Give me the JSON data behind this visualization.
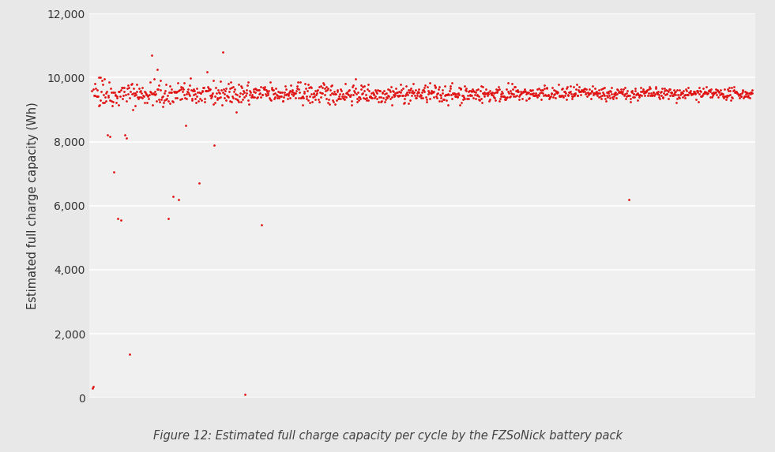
{
  "title": "",
  "ylabel": "Estimated full charge capacity (Wh)",
  "xlabel": "",
  "caption": "Figure 12: Estimated full charge capacity per cycle by the FZSoNick battery pack",
  "dot_color": "#e01010",
  "background_color": "#e8e8e8",
  "plot_background_color": "#f0f0f0",
  "grid_color": "#ffffff",
  "ylim": [
    0,
    12000
  ],
  "yticks": [
    0,
    2000,
    4000,
    6000,
    8000,
    10000,
    12000
  ],
  "n_points": 1200,
  "seed": 42,
  "marker_size": 4,
  "caption_fontsize": 10.5,
  "ylabel_fontsize": 10.5,
  "tick_fontsize": 10
}
